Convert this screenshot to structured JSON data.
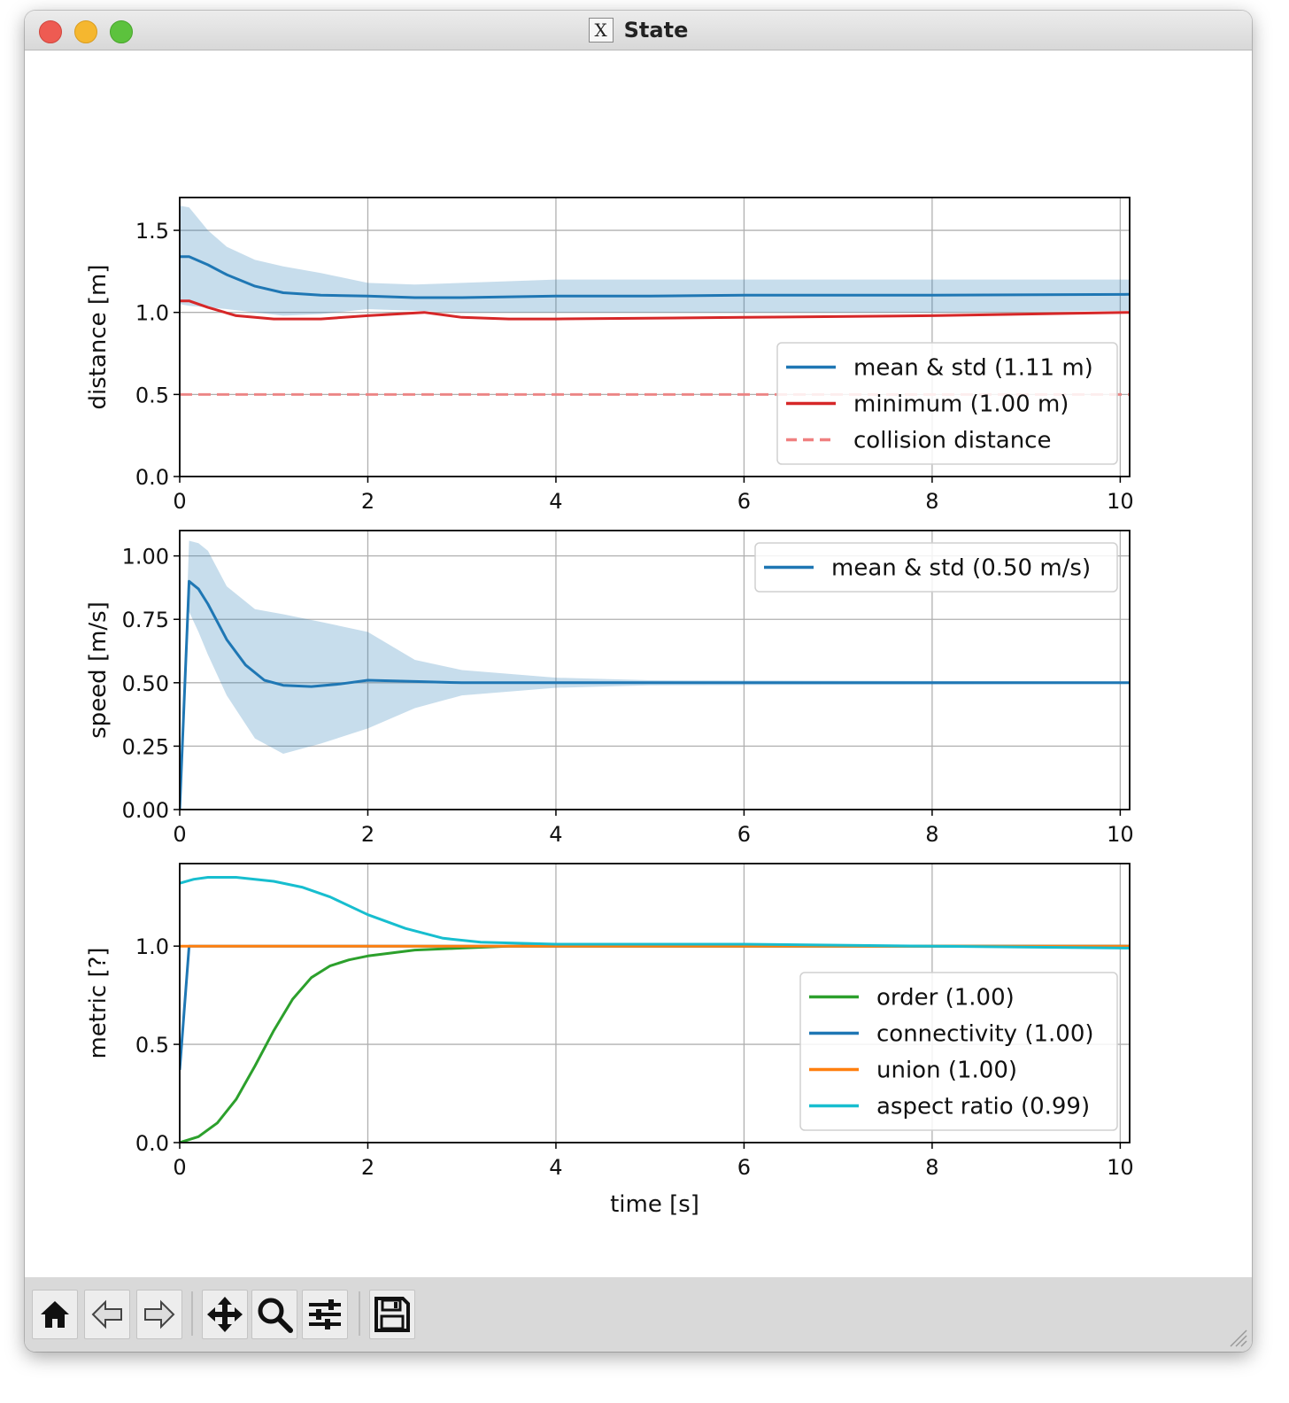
{
  "window": {
    "title": "State",
    "app_icon": "x11-icon"
  },
  "toolbar": {
    "buttons": [
      {
        "name": "home-button",
        "icon": "home-icon"
      },
      {
        "name": "back-button",
        "icon": "arrow-left-icon"
      },
      {
        "name": "forward-button",
        "icon": "arrow-right-icon"
      },
      {
        "name": "pan-button",
        "icon": "move-icon"
      },
      {
        "name": "zoom-button",
        "icon": "magnifier-icon"
      },
      {
        "name": "configure-subplots-button",
        "icon": "sliders-icon"
      },
      {
        "name": "save-button",
        "icon": "floppy-disk-icon"
      }
    ]
  },
  "colors": {
    "blue": "#1f77b4",
    "red": "#d62728",
    "orange": "#ff7f0e",
    "green": "#2ca02c",
    "cyan": "#17becf",
    "band": "#1f77b4",
    "collision": "#f08080"
  },
  "chart_data": [
    {
      "type": "line",
      "xlabel": "time [s]",
      "ylabel": "distance [m]",
      "xlim": [
        0,
        10.1
      ],
      "ylim": [
        0,
        1.7
      ],
      "xticks": [
        "0",
        "2",
        "4",
        "6",
        "8",
        "10"
      ],
      "xtick_values": [
        0,
        2,
        4,
        6,
        8,
        10
      ],
      "yticks": [
        "0.0",
        "0.5",
        "1.0",
        "1.5"
      ],
      "ytick_values": [
        0,
        0.5,
        1.0,
        1.5
      ],
      "grid": true,
      "legend_position": "lower-right",
      "series": [
        {
          "name": "mean & std (1.11 m)",
          "color": "#1f77b4",
          "style": "solid",
          "x": [
            0,
            0.1,
            0.3,
            0.5,
            0.8,
            1.1,
            1.5,
            2.0,
            2.5,
            3.0,
            4.0,
            5.0,
            6.0,
            8.0,
            10.1
          ],
          "y": [
            1.34,
            1.34,
            1.29,
            1.23,
            1.16,
            1.12,
            1.105,
            1.1,
            1.09,
            1.09,
            1.1,
            1.1,
            1.105,
            1.105,
            1.11
          ]
        },
        {
          "name": "minimum (1.00 m)",
          "color": "#d62728",
          "style": "solid",
          "x": [
            0,
            0.1,
            0.3,
            0.6,
            1.0,
            1.5,
            2.0,
            2.6,
            3.0,
            3.5,
            4.0,
            6.0,
            8.0,
            10.1
          ],
          "y": [
            1.07,
            1.07,
            1.03,
            0.98,
            0.96,
            0.96,
            0.98,
            1.0,
            0.97,
            0.96,
            0.96,
            0.97,
            0.98,
            1.0
          ]
        },
        {
          "name": "collision distance",
          "color": "#f08080",
          "style": "dashed",
          "x": [
            0,
            10.1
          ],
          "y": [
            0.5,
            0.5
          ]
        }
      ],
      "band": {
        "of": "mean & std (1.11 m)",
        "x": [
          0,
          0.1,
          0.3,
          0.5,
          0.8,
          1.1,
          1.5,
          2.0,
          2.5,
          3.0,
          4.0,
          6.0,
          8.0,
          10.1
        ],
        "upper": [
          1.65,
          1.64,
          1.5,
          1.4,
          1.32,
          1.28,
          1.24,
          1.18,
          1.17,
          1.18,
          1.2,
          1.2,
          1.2,
          1.2
        ],
        "lower": [
          1.05,
          1.04,
          1.03,
          1.02,
          1.0,
          0.98,
          0.99,
          1.02,
          1.01,
          1.0,
          1.0,
          1.0,
          1.0,
          1.01
        ]
      }
    },
    {
      "type": "line",
      "xlabel": "time [s]",
      "ylabel": "speed [m/s]",
      "xlim": [
        0,
        10.1
      ],
      "ylim": [
        0,
        1.1
      ],
      "xticks": [
        "0",
        "2",
        "4",
        "6",
        "8",
        "10"
      ],
      "xtick_values": [
        0,
        2,
        4,
        6,
        8,
        10
      ],
      "yticks": [
        "0.00",
        "0.25",
        "0.50",
        "0.75",
        "1.00"
      ],
      "ytick_values": [
        0,
        0.25,
        0.5,
        0.75,
        1.0
      ],
      "grid": true,
      "legend_position": "upper-right",
      "series": [
        {
          "name": "mean & std (0.50 m/s)",
          "color": "#1f77b4",
          "style": "solid",
          "x": [
            0,
            0.1,
            0.2,
            0.3,
            0.5,
            0.7,
            0.9,
            1.1,
            1.4,
            1.7,
            2.0,
            2.5,
            3.0,
            4.0,
            10.1
          ],
          "y": [
            0.0,
            0.9,
            0.87,
            0.81,
            0.67,
            0.57,
            0.51,
            0.49,
            0.485,
            0.495,
            0.51,
            0.505,
            0.5,
            0.5,
            0.5
          ]
        }
      ],
      "band": {
        "of": "mean & std (0.50 m/s)",
        "x": [
          0,
          0.1,
          0.2,
          0.3,
          0.5,
          0.8,
          1.1,
          1.5,
          2.0,
          2.5,
          3.0,
          4.0,
          5.0,
          10.1
        ],
        "upper": [
          0.0,
          1.06,
          1.05,
          1.02,
          0.88,
          0.79,
          0.77,
          0.74,
          0.7,
          0.59,
          0.55,
          0.52,
          0.51,
          0.505
        ],
        "lower": [
          0.0,
          0.78,
          0.7,
          0.61,
          0.45,
          0.28,
          0.22,
          0.26,
          0.32,
          0.4,
          0.45,
          0.48,
          0.49,
          0.495
        ]
      }
    },
    {
      "type": "line",
      "xlabel": "time [s]",
      "ylabel": "metric [?]",
      "xlim": [
        0,
        10.1
      ],
      "ylim": [
        0,
        1.42
      ],
      "xticks": [
        "0",
        "2",
        "4",
        "6",
        "8",
        "10"
      ],
      "xtick_values": [
        0,
        2,
        4,
        6,
        8,
        10
      ],
      "yticks": [
        "0.0",
        "0.5",
        "1.0"
      ],
      "ytick_values": [
        0,
        0.5,
        1.0
      ],
      "grid": true,
      "legend_position": "lower-right",
      "series": [
        {
          "name": "order (1.00)",
          "color": "#2ca02c",
          "style": "solid",
          "x": [
            0,
            0.2,
            0.4,
            0.6,
            0.8,
            1.0,
            1.2,
            1.4,
            1.6,
            1.8,
            2.0,
            2.5,
            3.0,
            3.5,
            4.0,
            10.1
          ],
          "y": [
            0.0,
            0.03,
            0.1,
            0.22,
            0.39,
            0.57,
            0.73,
            0.84,
            0.9,
            0.93,
            0.95,
            0.98,
            0.99,
            1.0,
            1.0,
            1.0
          ]
        },
        {
          "name": "connectivity (1.00)",
          "color": "#1f77b4",
          "style": "solid",
          "x": [
            0,
            0.1,
            10.1
          ],
          "y": [
            0.37,
            1.0,
            1.0
          ]
        },
        {
          "name": "union (1.00)",
          "color": "#ff7f0e",
          "style": "solid",
          "x": [
            0,
            10.1
          ],
          "y": [
            1.0,
            1.0
          ]
        },
        {
          "name": "aspect ratio (0.99)",
          "color": "#17becf",
          "style": "solid",
          "x": [
            0,
            0.15,
            0.3,
            0.6,
            1.0,
            1.3,
            1.6,
            2.0,
            2.4,
            2.8,
            3.2,
            4.0,
            6.0,
            8.0,
            10.1
          ],
          "y": [
            1.32,
            1.34,
            1.35,
            1.35,
            1.33,
            1.3,
            1.25,
            1.16,
            1.09,
            1.04,
            1.02,
            1.01,
            1.01,
            1.0,
            0.99
          ]
        }
      ]
    }
  ]
}
